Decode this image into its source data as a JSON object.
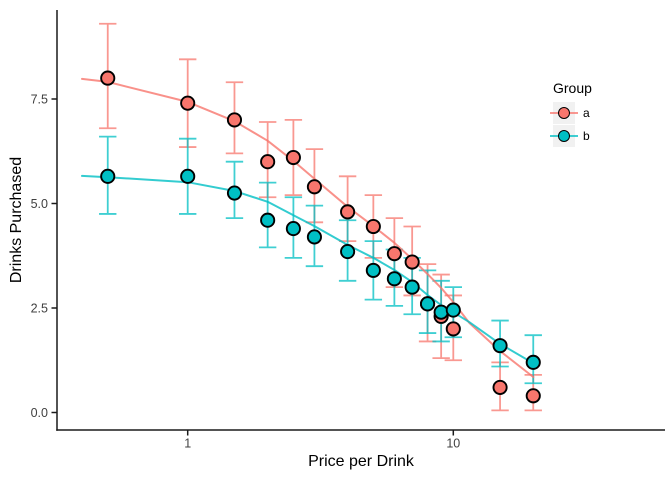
{
  "chart_data": {
    "type": "scatter",
    "title": "",
    "xlabel": "Price per Drink",
    "ylabel": "Drinks Purchased",
    "x_scale": "log10",
    "grid": "off",
    "x_axis": {
      "ticks": [
        {
          "value": 1,
          "label": "1"
        },
        {
          "value": 10,
          "label": "10"
        }
      ]
    },
    "y_axis": {
      "ticks": [
        {
          "value": 0,
          "label": "0.0"
        },
        {
          "value": 2.5,
          "label": "2.5"
        },
        {
          "value": 5,
          "label": "5.0"
        },
        {
          "value": 7.5,
          "label": "7.5"
        }
      ],
      "range": [
        0,
        9.3
      ]
    },
    "legend": {
      "title": "Group",
      "position": "inside-right",
      "entries": [
        {
          "label": "a",
          "color": "#F8766D"
        },
        {
          "label": "b",
          "color": "#00BFC4"
        }
      ]
    },
    "prices": [
      0.5,
      1,
      1.5,
      2,
      2.5,
      3,
      4,
      5,
      6,
      7,
      8,
      9,
      10,
      15,
      20
    ],
    "series": [
      {
        "name": "a",
        "color": "#F8766D",
        "values": [
          8.0,
          7.4,
          7.0,
          6.0,
          6.1,
          5.4,
          4.8,
          4.45,
          3.8,
          3.6,
          2.6,
          2.3,
          2.0,
          0.6,
          0.4
        ],
        "ymin": [
          6.8,
          6.35,
          6.2,
          5.15,
          5.2,
          4.55,
          4.1,
          3.7,
          3.0,
          2.8,
          1.7,
          1.3,
          1.25,
          0.05,
          0.05
        ],
        "ymax": [
          9.3,
          8.45,
          7.9,
          6.95,
          7.0,
          6.3,
          5.65,
          5.2,
          4.65,
          4.45,
          3.55,
          3.3,
          2.8,
          1.2,
          0.9
        ],
        "smooth": [
          [
            0.4,
            7.98
          ],
          [
            0.5,
            7.91
          ],
          [
            1,
            7.43
          ],
          [
            1.5,
            6.97
          ],
          [
            2,
            6.5
          ],
          [
            2.5,
            6.02
          ],
          [
            3,
            5.59
          ],
          [
            4,
            4.92
          ],
          [
            5,
            4.46
          ],
          [
            6,
            4.06
          ],
          [
            7,
            3.67
          ],
          [
            8,
            3.31
          ],
          [
            9,
            2.98
          ],
          [
            10,
            2.64
          ],
          [
            11.5,
            2.14
          ],
          [
            15,
            1.47
          ],
          [
            20,
            0.85
          ]
        ]
      },
      {
        "name": "b",
        "color": "#00BFC4",
        "values": [
          5.65,
          5.65,
          5.25,
          4.6,
          4.4,
          4.2,
          3.85,
          3.4,
          3.2,
          3.0,
          2.6,
          2.4,
          2.45,
          1.6,
          1.2
        ],
        "ymin": [
          4.75,
          4.75,
          4.65,
          3.95,
          3.7,
          3.5,
          3.15,
          2.7,
          2.55,
          2.35,
          1.9,
          1.7,
          1.8,
          1.1,
          0.7
        ],
        "ymax": [
          6.6,
          6.55,
          6.0,
          5.5,
          5.15,
          4.95,
          4.6,
          4.1,
          3.9,
          3.7,
          3.4,
          3.15,
          3.0,
          2.2,
          1.85
        ],
        "smooth": [
          [
            0.4,
            5.66
          ],
          [
            0.5,
            5.63
          ],
          [
            1,
            5.51
          ],
          [
            1.5,
            5.3
          ],
          [
            2,
            5.04
          ],
          [
            2.5,
            4.72
          ],
          [
            3,
            4.46
          ],
          [
            4,
            4.01
          ],
          [
            5,
            3.7
          ],
          [
            6,
            3.41
          ],
          [
            7,
            3.12
          ],
          [
            8,
            2.81
          ],
          [
            9,
            2.57
          ],
          [
            10,
            2.4
          ],
          [
            11.5,
            2.16
          ],
          [
            15,
            1.64
          ],
          [
            20,
            1.18
          ]
        ]
      }
    ],
    "style": {
      "axis_color": "#1a1a1a",
      "tick_label_color": "#404040",
      "errorbar_opacity": 0.75,
      "smooth_opacity": 0.8,
      "key_bg": "#F1F1F1"
    }
  }
}
